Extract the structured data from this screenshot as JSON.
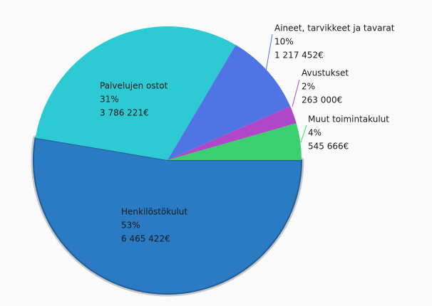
{
  "chart_data": {
    "type": "pie",
    "categories": [
      "Henkilöstökulut",
      "Palvelujen ostot",
      "Aineet, tarvikkeet ja tavarat",
      "Avustukset",
      "Muut toimintakulut"
    ],
    "values": [
      6465422,
      3786221,
      1217452,
      263000,
      545666
    ],
    "value_labels": [
      "6 465 422€",
      "3 786 221€",
      "1 217 452€",
      "263 000€",
      "545 666€"
    ],
    "percents": [
      53,
      31,
      10,
      2,
      4
    ],
    "percent_labels": [
      "53%",
      "31%",
      "10%",
      "2%",
      "4%"
    ],
    "colors": [
      "#2a7bc4",
      "#2ecad3",
      "#4f74e3",
      "#b046c8",
      "#3bd06f"
    ]
  }
}
